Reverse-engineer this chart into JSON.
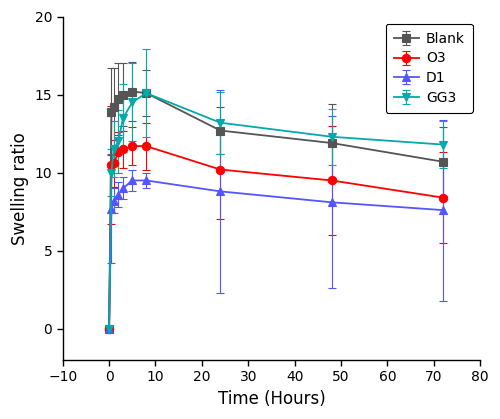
{
  "title": "",
  "xlabel": "Time (Hours)",
  "ylabel": "Swelling ratio",
  "xlim": [
    -10,
    80
  ],
  "ylim": [
    -2,
    20
  ],
  "xticks": [
    -10,
    0,
    10,
    20,
    30,
    40,
    50,
    60,
    70,
    80
  ],
  "yticks": [
    0,
    5,
    10,
    15,
    20
  ],
  "series": {
    "Blank": {
      "color": "#555555",
      "marker": "s",
      "linestyle": "-",
      "x": [
        0,
        0.5,
        1,
        2,
        3,
        5,
        8,
        24,
        48,
        72
      ],
      "y": [
        0.0,
        13.9,
        14.2,
        14.7,
        15.0,
        15.2,
        15.1,
        12.7,
        11.9,
        10.7
      ],
      "yerr": [
        0.0,
        2.8,
        2.5,
        2.3,
        2.0,
        1.9,
        1.5,
        1.5,
        2.5,
        2.2
      ]
    },
    "O3": {
      "color": "#ff0000",
      "marker": "o",
      "linestyle": "-",
      "x": [
        0,
        0.5,
        1,
        2,
        3,
        5,
        8,
        24,
        48,
        72
      ],
      "y": [
        0.0,
        10.5,
        10.6,
        11.3,
        11.5,
        11.7,
        11.7,
        10.2,
        9.5,
        8.4
      ],
      "yerr": [
        0.0,
        3.8,
        1.5,
        1.3,
        1.2,
        1.2,
        1.5,
        3.2,
        3.5,
        2.9
      ]
    },
    "D1": {
      "color": "#5555ff",
      "marker": "^",
      "linestyle": "-",
      "x": [
        0,
        0.5,
        1,
        2,
        3,
        5,
        8,
        24,
        48,
        72
      ],
      "y": [
        0.0,
        7.7,
        8.2,
        8.6,
        9.0,
        9.5,
        9.5,
        8.8,
        8.1,
        7.6
      ],
      "yerr": [
        0.0,
        3.5,
        0.8,
        0.8,
        0.7,
        0.7,
        0.5,
        6.5,
        5.5,
        5.8
      ]
    },
    "GG3": {
      "color": "#00aaaa",
      "marker": "v",
      "linestyle": "-",
      "x": [
        0,
        0.5,
        1,
        2,
        3,
        5,
        8,
        24,
        48,
        72
      ],
      "y": [
        0.0,
        10.0,
        11.5,
        12.0,
        13.5,
        14.5,
        15.1,
        13.2,
        12.3,
        11.8
      ],
      "yerr": [
        0.0,
        1.5,
        1.8,
        2.0,
        2.2,
        2.5,
        2.8,
        2.0,
        1.8,
        1.5
      ]
    }
  },
  "legend_order": [
    "Blank",
    "O3",
    "D1",
    "GG3"
  ]
}
